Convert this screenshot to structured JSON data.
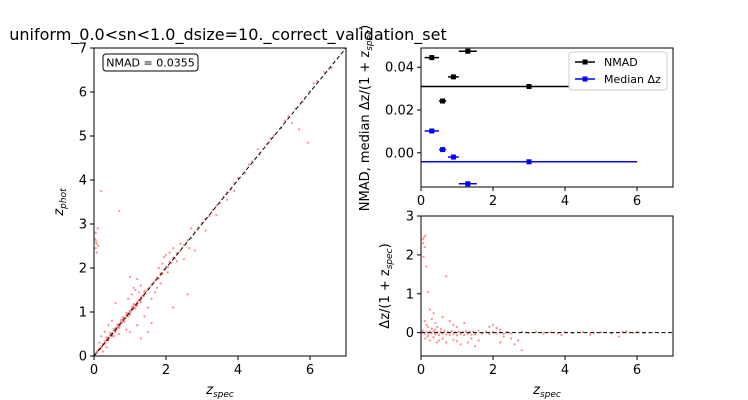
{
  "figure": {
    "title": "uniform_0.0<sn<1.0_dsize=10._correct_validation_set"
  },
  "chart_data": [
    {
      "type": "scatter",
      "id": "main",
      "xlabel_base": "z",
      "xlabel_sub": "spec",
      "ylabel_base": "z",
      "ylabel_sub": "phot",
      "xlim": [
        0,
        7
      ],
      "ylim": [
        0,
        7
      ],
      "xticks": [
        "0",
        "2",
        "4",
        "6"
      ],
      "yticks": [
        "0",
        "1",
        "2",
        "3",
        "4",
        "5",
        "6",
        "7"
      ],
      "annotation": "NMAD = 0.0355",
      "diagonal": [
        [
          0,
          0
        ],
        [
          7,
          7
        ]
      ],
      "point_color": "#ff0000",
      "points": [
        [
          0.05,
          0.06
        ],
        [
          0.08,
          0.1
        ],
        [
          0.1,
          0.09
        ],
        [
          0.12,
          0.14
        ],
        [
          0.15,
          0.16
        ],
        [
          0.18,
          0.17
        ],
        [
          0.2,
          0.22
        ],
        [
          0.22,
          0.2
        ],
        [
          0.25,
          0.27
        ],
        [
          0.28,
          0.26
        ],
        [
          0.3,
          0.33
        ],
        [
          0.32,
          0.3
        ],
        [
          0.35,
          0.37
        ],
        [
          0.38,
          0.36
        ],
        [
          0.4,
          0.42
        ],
        [
          0.42,
          0.41
        ],
        [
          0.45,
          0.47
        ],
        [
          0.48,
          0.46
        ],
        [
          0.5,
          0.52
        ],
        [
          0.52,
          0.5
        ],
        [
          0.55,
          0.57
        ],
        [
          0.58,
          0.56
        ],
        [
          0.6,
          0.63
        ],
        [
          0.62,
          0.6
        ],
        [
          0.65,
          0.67
        ],
        [
          0.68,
          0.66
        ],
        [
          0.7,
          0.73
        ],
        [
          0.72,
          0.7
        ],
        [
          0.75,
          0.77
        ],
        [
          0.78,
          0.76
        ],
        [
          0.8,
          0.83
        ],
        [
          0.82,
          0.8
        ],
        [
          0.85,
          0.87
        ],
        [
          0.88,
          0.86
        ],
        [
          0.9,
          0.93
        ],
        [
          0.92,
          0.91
        ],
        [
          0.95,
          0.97
        ],
        [
          0.98,
          0.96
        ],
        [
          1.0,
          1.03
        ],
        [
          1.02,
          1.0
        ],
        [
          1.05,
          1.07
        ],
        [
          1.08,
          1.06
        ],
        [
          1.1,
          1.13
        ],
        [
          1.12,
          1.1
        ],
        [
          1.15,
          1.17
        ],
        [
          1.18,
          1.16
        ],
        [
          1.2,
          1.23
        ],
        [
          1.22,
          1.2
        ],
        [
          1.25,
          1.27
        ],
        [
          1.28,
          1.26
        ],
        [
          1.3,
          1.33
        ],
        [
          1.32,
          1.31
        ],
        [
          1.35,
          1.37
        ],
        [
          1.38,
          1.36
        ],
        [
          1.4,
          1.43
        ],
        [
          1.45,
          1.47
        ],
        [
          1.5,
          1.53
        ],
        [
          1.55,
          1.57
        ],
        [
          1.6,
          1.63
        ],
        [
          1.65,
          1.67
        ],
        [
          0.65,
          0.72
        ],
        [
          0.7,
          0.64
        ],
        [
          0.75,
          0.82
        ],
        [
          0.85,
          0.78
        ],
        [
          0.9,
          0.98
        ],
        [
          1.0,
          0.94
        ],
        [
          1.1,
          1.18
        ],
        [
          1.2,
          1.14
        ],
        [
          0.55,
          0.62
        ],
        [
          0.6,
          0.55
        ],
        [
          1.3,
          1.22
        ],
        [
          1.4,
          1.48
        ],
        [
          0.45,
          0.52
        ],
        [
          0.5,
          0.46
        ],
        [
          0.35,
          0.42
        ],
        [
          0.4,
          0.36
        ],
        [
          1.05,
          1.12
        ],
        [
          0.95,
          0.9
        ],
        [
          0.8,
          0.88
        ],
        [
          1.15,
          1.08
        ],
        [
          1.7,
          1.72
        ],
        [
          1.75,
          1.78
        ],
        [
          1.8,
          1.76
        ],
        [
          1.85,
          1.88
        ],
        [
          1.9,
          1.86
        ],
        [
          1.95,
          1.97
        ],
        [
          2.0,
          2.03
        ],
        [
          2.05,
          2.02
        ],
        [
          2.1,
          2.14
        ],
        [
          2.15,
          2.12
        ],
        [
          2.2,
          2.24
        ],
        [
          2.25,
          2.22
        ],
        [
          2.3,
          2.34
        ],
        [
          2.4,
          2.38
        ],
        [
          2.5,
          2.52
        ],
        [
          2.6,
          2.63
        ],
        [
          2.7,
          2.68
        ],
        [
          2.8,
          2.82
        ],
        [
          2.9,
          2.92
        ],
        [
          3.0,
          3.02
        ],
        [
          3.1,
          3.12
        ],
        [
          3.2,
          3.18
        ],
        [
          3.3,
          3.32
        ],
        [
          3.4,
          3.42
        ],
        [
          3.5,
          3.48
        ],
        [
          3.6,
          3.62
        ],
        [
          3.7,
          3.72
        ],
        [
          3.8,
          3.78
        ],
        [
          3.9,
          3.92
        ],
        [
          4.0,
          4.05
        ],
        [
          4.2,
          4.15
        ],
        [
          4.4,
          4.42
        ],
        [
          4.6,
          4.58
        ],
        [
          4.8,
          4.82
        ],
        [
          5.0,
          5.02
        ],
        [
          5.2,
          5.18
        ],
        [
          5.4,
          5.45
        ],
        [
          5.6,
          5.62
        ],
        [
          5.8,
          5.78
        ],
        [
          6.0,
          6.02
        ],
        [
          6.1,
          6.2
        ],
        [
          6.2,
          6.25
        ],
        [
          6.4,
          6.45
        ],
        [
          6.6,
          6.55
        ],
        [
          5.5,
          5.3
        ],
        [
          5.7,
          5.15
        ],
        [
          5.95,
          4.85
        ],
        [
          4.55,
          4.7
        ],
        [
          4.3,
          4.35
        ],
        [
          3.9,
          3.75
        ],
        [
          1.9,
          2.1
        ],
        [
          2.0,
          2.3
        ],
        [
          2.1,
          2.35
        ],
        [
          2.2,
          2.45
        ],
        [
          1.8,
          2.0
        ],
        [
          1.95,
          2.25
        ],
        [
          2.05,
          1.9
        ],
        [
          2.3,
          2.15
        ],
        [
          2.4,
          2.55
        ],
        [
          2.7,
          2.9
        ],
        [
          0.05,
          2.45
        ],
        [
          0.06,
          2.6
        ],
        [
          0.07,
          2.55
        ],
        [
          0.08,
          2.35
        ],
        [
          0.05,
          2.8
        ],
        [
          0.04,
          2.65
        ],
        [
          0.1,
          2.9
        ],
        [
          0.12,
          2.5
        ],
        [
          0.2,
          3.75
        ],
        [
          0.7,
          3.3
        ],
        [
          1.0,
          1.8
        ],
        [
          1.1,
          1.55
        ],
        [
          1.2,
          1.75
        ],
        [
          1.3,
          1.6
        ],
        [
          1.05,
          1.4
        ],
        [
          1.15,
          1.5
        ],
        [
          1.25,
          1.45
        ],
        [
          0.95,
          1.3
        ],
        [
          0.6,
          1.2
        ],
        [
          0.5,
          0.8
        ],
        [
          0.4,
          0.7
        ],
        [
          0.55,
          0.45
        ],
        [
          0.7,
          0.5
        ],
        [
          0.9,
          0.6
        ],
        [
          1.0,
          0.55
        ],
        [
          1.2,
          0.7
        ],
        [
          1.4,
          0.9
        ],
        [
          1.5,
          1.1
        ],
        [
          1.6,
          1.3
        ],
        [
          1.7,
          1.45
        ],
        [
          1.5,
          0.55
        ],
        [
          1.3,
          0.4
        ],
        [
          1.6,
          0.75
        ],
        [
          2.2,
          1.1
        ],
        [
          2.6,
          1.4
        ],
        [
          0.2,
          0.45
        ],
        [
          0.15,
          0.3
        ],
        [
          0.3,
          0.55
        ],
        [
          0.25,
          0.1
        ],
        [
          0.35,
          0.2
        ],
        [
          2.8,
          2.4
        ],
        [
          3.1,
          2.85
        ],
        [
          3.4,
          3.2
        ],
        [
          3.7,
          3.55
        ],
        [
          2.5,
          2.2
        ],
        [
          2.65,
          2.45
        ],
        [
          1.75,
          1.55
        ],
        [
          1.85,
          1.65
        ],
        [
          4.9,
          4.95
        ],
        [
          5.3,
          5.35
        ]
      ]
    },
    {
      "type": "scatter",
      "id": "nmad",
      "ylabel_text": "NMAD, median Δz/(1 + z",
      "ylabel_sub": "spec",
      "ylabel_close": ")",
      "xlim": [
        0,
        7
      ],
      "ylim": [
        -0.016,
        0.049
      ],
      "xticks": [
        "0",
        "2",
        "4",
        "6"
      ],
      "yticks": [
        "0.00",
        "0.02",
        "0.04"
      ],
      "legend": "upper right",
      "series": [
        {
          "name": "NMAD",
          "color": "#000000",
          "points": [
            {
              "x": 0.3,
              "y": 0.0445,
              "xerr": 0.2
            },
            {
              "x": 0.6,
              "y": 0.0242,
              "xerr": 0.1
            },
            {
              "x": 0.9,
              "y": 0.0355,
              "xerr": 0.15
            },
            {
              "x": 1.3,
              "y": 0.0475,
              "xerr": 0.25
            },
            {
              "x": 3.0,
              "y": 0.031,
              "xerr": 3.0
            }
          ]
        },
        {
          "name": "Median Δz",
          "color": "#0000ff",
          "points": [
            {
              "x": 0.3,
              "y": 0.0102,
              "xerr": 0.2
            },
            {
              "x": 0.6,
              "y": 0.0015,
              "xerr": 0.1
            },
            {
              "x": 0.9,
              "y": -0.002,
              "xerr": 0.15
            },
            {
              "x": 1.3,
              "y": -0.0145,
              "xerr": 0.25
            },
            {
              "x": 3.0,
              "y": -0.0042,
              "xerr": 3.0
            }
          ]
        }
      ]
    },
    {
      "type": "scatter",
      "id": "resid",
      "xlabel_base": "z",
      "xlabel_sub": "spec",
      "ylabel_text": "Δz/(1 + z",
      "ylabel_sub": "spec",
      "ylabel_close": ")",
      "xlim": [
        0,
        7
      ],
      "ylim": [
        -0.6,
        3.0
      ],
      "xticks": [
        "0",
        "2",
        "4",
        "6"
      ],
      "yticks": [
        "0",
        "1",
        "2",
        "3"
      ],
      "zero_line": 0,
      "point_color": "#ff0000",
      "points": [
        [
          0.05,
          2.4
        ],
        [
          0.06,
          2.3
        ],
        [
          0.08,
          2.45
        ],
        [
          0.1,
          2.2
        ],
        [
          0.07,
          1.95
        ],
        [
          0.12,
          2.5
        ],
        [
          0.15,
          1.7
        ],
        [
          0.2,
          1.05
        ],
        [
          0.25,
          0.6
        ],
        [
          0.3,
          0.35
        ],
        [
          0.35,
          0.5
        ],
        [
          0.4,
          0.25
        ],
        [
          0.45,
          0.15
        ],
        [
          0.7,
          1.45
        ],
        [
          0.6,
          0.4
        ],
        [
          0.55,
          0.1
        ],
        [
          0.8,
          0.3
        ],
        [
          0.9,
          0.2
        ],
        [
          1.0,
          0.15
        ],
        [
          1.2,
          0.25
        ],
        [
          0.05,
          0.05
        ],
        [
          0.1,
          -0.03
        ],
        [
          0.15,
          0.02
        ],
        [
          0.2,
          -0.05
        ],
        [
          0.25,
          0.03
        ],
        [
          0.3,
          -0.02
        ],
        [
          0.35,
          0.04
        ],
        [
          0.4,
          -0.04
        ],
        [
          0.45,
          0.01
        ],
        [
          0.5,
          -0.06
        ],
        [
          0.55,
          0.03
        ],
        [
          0.6,
          -0.02
        ],
        [
          0.65,
          0.05
        ],
        [
          0.7,
          -0.04
        ],
        [
          0.75,
          0.02
        ],
        [
          0.8,
          -0.05
        ],
        [
          0.85,
          0.04
        ],
        [
          0.9,
          -0.03
        ],
        [
          0.95,
          0.01
        ],
        [
          1.0,
          -0.07
        ],
        [
          1.05,
          0.03
        ],
        [
          1.1,
          -0.04
        ],
        [
          1.15,
          0.02
        ],
        [
          1.2,
          -0.06
        ],
        [
          1.25,
          0.04
        ],
        [
          1.3,
          -0.03
        ],
        [
          1.35,
          0.02
        ],
        [
          1.4,
          -0.05
        ],
        [
          1.45,
          0.03
        ],
        [
          1.5,
          -0.04
        ],
        [
          0.5,
          -0.2
        ],
        [
          0.6,
          -0.15
        ],
        [
          0.7,
          -0.25
        ],
        [
          0.9,
          -0.18
        ],
        [
          1.0,
          -0.22
        ],
        [
          1.1,
          -0.3
        ],
        [
          1.3,
          -0.25
        ],
        [
          1.5,
          -0.35
        ],
        [
          1.6,
          -0.2
        ],
        [
          1.4,
          -0.15
        ],
        [
          1.6,
          0.05
        ],
        [
          1.7,
          -0.02
        ],
        [
          1.8,
          0.03
        ],
        [
          1.9,
          -0.03
        ],
        [
          2.0,
          0.02
        ],
        [
          2.1,
          -0.02
        ],
        [
          2.2,
          0.01
        ],
        [
          2.3,
          -0.03
        ],
        [
          2.4,
          0.02
        ],
        [
          2.5,
          -0.02
        ],
        [
          1.9,
          0.15
        ],
        [
          2.0,
          0.2
        ],
        [
          2.1,
          0.12
        ],
        [
          2.2,
          0.08
        ],
        [
          2.3,
          -0.1
        ],
        [
          2.6,
          -0.3
        ],
        [
          2.8,
          -0.45
        ],
        [
          2.7,
          -0.2
        ],
        [
          2.5,
          -0.15
        ],
        [
          2.2,
          -0.25
        ],
        [
          2.8,
          0.02
        ],
        [
          3.0,
          -0.01
        ],
        [
          3.2,
          0.02
        ],
        [
          3.4,
          -0.02
        ],
        [
          3.6,
          0.01
        ],
        [
          3.8,
          -0.02
        ],
        [
          4.0,
          0.01
        ],
        [
          4.2,
          -0.01
        ],
        [
          4.5,
          0.02
        ],
        [
          4.8,
          -0.01
        ],
        [
          5.0,
          0.01
        ],
        [
          5.3,
          -0.02
        ],
        [
          5.6,
          0.02
        ],
        [
          5.9,
          -0.01
        ],
        [
          6.0,
          0.02
        ],
        [
          6.2,
          -0.01
        ],
        [
          4.7,
          -0.05
        ],
        [
          5.5,
          -0.1
        ],
        [
          5.7,
          0.04
        ],
        [
          3.9,
          -0.06
        ],
        [
          0.1,
          0.3
        ],
        [
          0.15,
          0.2
        ],
        [
          0.2,
          0.15
        ],
        [
          0.3,
          0.1
        ],
        [
          0.4,
          0.08
        ],
        [
          0.12,
          -0.15
        ],
        [
          0.18,
          -0.1
        ],
        [
          0.25,
          -0.2
        ],
        [
          0.35,
          -0.12
        ],
        [
          0.45,
          -0.25
        ]
      ]
    }
  ]
}
